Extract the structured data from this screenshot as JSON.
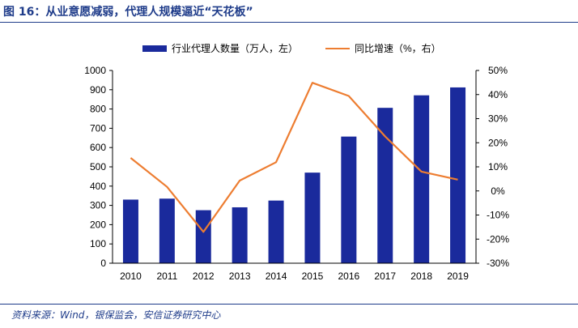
{
  "figure": {
    "title": "图 16：从业意愿减弱，代理人规模逼近“天花板”",
    "source": "资料来源：Wind，银保监会，安信证券研究中心"
  },
  "colors": {
    "bar": "#1a2a9c",
    "line": "#ed7d31",
    "title": "#1f3c8a",
    "axis": "#000000"
  },
  "chart_data": {
    "type": "bar",
    "categories": [
      "2010",
      "2011",
      "2012",
      "2013",
      "2014",
      "2015",
      "2016",
      "2017",
      "2018",
      "2019"
    ],
    "series": [
      {
        "name": "行业代理人数量（万人，左）",
        "type": "bar",
        "axis": "left",
        "values": [
          330,
          335,
          275,
          290,
          325,
          470,
          657,
          806,
          871,
          912
        ]
      },
      {
        "name": "同比增速（%，右）",
        "type": "line",
        "axis": "right",
        "values": [
          13.7,
          1.7,
          -17.0,
          4.3,
          11.9,
          44.9,
          39.4,
          22.6,
          8.0,
          4.7
        ]
      }
    ],
    "y_left": {
      "range": [
        0,
        1000
      ],
      "ticks": [
        "0",
        "100",
        "200",
        "300",
        "400",
        "500",
        "600",
        "700",
        "800",
        "900",
        "1000"
      ]
    },
    "y_right": {
      "range": [
        -30,
        50
      ],
      "ticks": [
        "-30%",
        "-20%",
        "-10%",
        "0%",
        "10%",
        "20%",
        "30%",
        "40%",
        "50%"
      ]
    },
    "grid": false,
    "legend": "top-center"
  }
}
